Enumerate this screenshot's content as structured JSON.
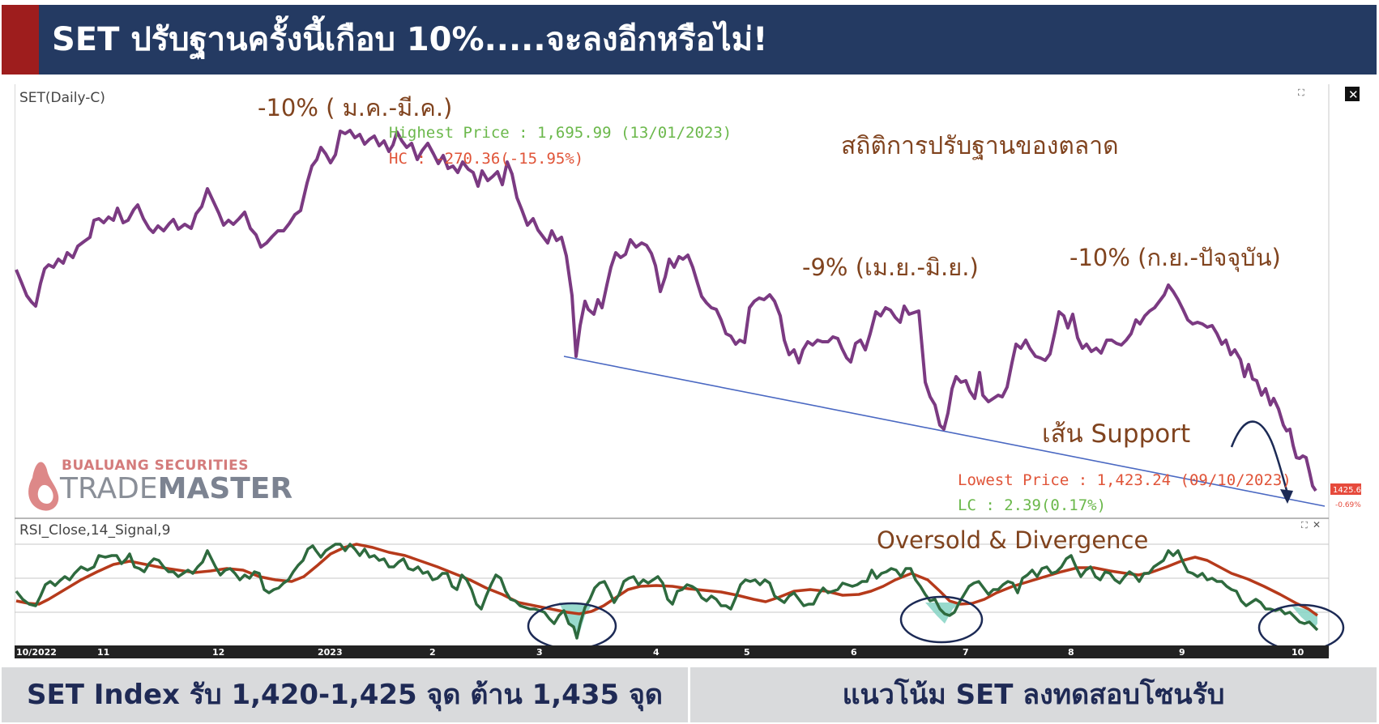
{
  "header": {
    "title": "SET ปรับฐานครั้งนี้เกือบ 10%.....จะลงอีกหรือไม่!",
    "accent_color": "#9e1d1d",
    "bar_color": "#243a62"
  },
  "chart": {
    "main_label": "SET(Daily-C)",
    "rsi_label": "RSI_Close,14_Signal,9",
    "annotations": {
      "ann1": "-10% ( ม.ค.-มี.ค.)",
      "ann2": "สถิติการปรับฐานของตลาด",
      "ann3": "-9% (เม.ย.-มิ.ย.)",
      "ann4": "-10% (ก.ย.-ปัจจุบัน)",
      "support": "เส้น Support",
      "highest": "Highest Price : 1,695.99 (13/01/2023)",
      "hc": "HC : -270.36(-15.95%)",
      "lowest": "Lowest Price : 1,423.24 (09/10/2023)",
      "lc": "LC : 2.39(0.17%)",
      "oversold": "Oversold  & Divergence"
    },
    "price_tag": "1425.63",
    "change_tag": "-0.69%",
    "x_ticks": [
      "10/2022",
      "11",
      "12",
      "2023",
      "2",
      "3",
      "4",
      "5",
      "6",
      "7",
      "8",
      "9",
      "10"
    ]
  },
  "logo": {
    "subtitle": "BUALUANG SECURITIES",
    "name_a": "TRADE",
    "name_b": "MASTER"
  },
  "footer": {
    "left": "SET Index รับ 1,420-1,425 จุด ต้าน 1,435 จุด",
    "right": "แนวโน้ม SET ลงทดสอบโซนรับ"
  },
  "chart_data": {
    "type": "line",
    "title": "SET(Daily-C)",
    "x": [
      "2022-10",
      "2022-11",
      "2022-12",
      "2023-01",
      "2023-02",
      "2023-03",
      "2023-04",
      "2023-05",
      "2023-06",
      "2023-07",
      "2023-08",
      "2023-09",
      "2023-10"
    ],
    "series": [
      {
        "name": "SET(Daily-C)",
        "color": "#7b3a82",
        "values": [
          1578,
          1623,
          1624,
          1690,
          1668,
          1544,
          1588,
          1558,
          1543,
          1512,
          1546,
          1566,
          1426
        ]
      },
      {
        "name": "RSI_Close,14",
        "color": "#2e6a3e",
        "values": [
          43,
          57,
          53,
          70,
          56,
          27,
          46,
          38,
          54,
          25,
          54,
          60,
          24
        ]
      },
      {
        "name": "Signal,9",
        "color": "#b63a1b",
        "values": [
          44,
          54,
          53,
          65,
          57,
          33,
          46,
          42,
          52,
          38,
          52,
          61,
          32
        ]
      }
    ],
    "key_levels": {
      "highest_price": 1695.99,
      "highest_date": "13/01/2023",
      "lowest_price": 1423.24,
      "lowest_date": "09/10/2023",
      "last": 1425.63,
      "change_pct": -0.69
    },
    "rsi_ylim": [
      0,
      100
    ],
    "price_ylim": [
      1380,
      1720
    ]
  }
}
